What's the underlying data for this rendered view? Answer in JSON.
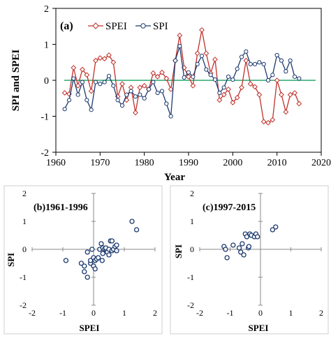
{
  "colors": {
    "spei": "#c0302b",
    "spi": "#1c3a6e",
    "zero_line": "#2aa86f",
    "scatter": "#1c3a6e"
  },
  "chart_data": [
    {
      "id": "a",
      "type": "line",
      "panel_label": "(a)",
      "xlabel": "Year",
      "ylabel": "SPI and SPEI",
      "xlim": [
        1960,
        2020
      ],
      "ylim": [
        -2,
        2
      ],
      "xticks": [
        1960,
        1970,
        1980,
        1990,
        2000,
        2010,
        2020
      ],
      "yticks": [
        -2,
        -1,
        0,
        1,
        2
      ],
      "x": [
        1962,
        1963,
        1964,
        1965,
        1966,
        1967,
        1968,
        1969,
        1970,
        1971,
        1972,
        1973,
        1974,
        1975,
        1976,
        1977,
        1978,
        1979,
        1980,
        1981,
        1982,
        1983,
        1984,
        1985,
        1986,
        1987,
        1988,
        1989,
        1990,
        1991,
        1992,
        1993,
        1994,
        1995,
        1996,
        1997,
        1998,
        1999,
        2000,
        2001,
        2002,
        2003,
        2004,
        2005,
        2006,
        2007,
        2008,
        2009,
        2010,
        2011,
        2012,
        2013,
        2014,
        2015
      ],
      "series": [
        {
          "name": "SPEI",
          "marker": "diamond",
          "values": [
            -0.35,
            -0.38,
            0.35,
            -0.15,
            0.3,
            0.15,
            -0.3,
            0.55,
            0.62,
            0.6,
            0.7,
            0.5,
            -0.45,
            -0.1,
            -0.55,
            -0.2,
            -0.9,
            -0.2,
            -0.15,
            -0.25,
            0.2,
            0.1,
            0.22,
            0.05,
            -0.25,
            0.55,
            1.25,
            0.35,
            0.1,
            -0.15,
            0.75,
            1.4,
            0.75,
            0.2,
            0.58,
            -0.55,
            -0.4,
            -0.25,
            -0.62,
            -0.48,
            -0.2,
            0.55,
            -0.1,
            -0.18,
            -0.4,
            -1.15,
            -1.18,
            -1.1,
            0.0,
            -0.4,
            -0.88,
            -0.4,
            -0.35,
            -0.65
          ]
        },
        {
          "name": "SPI",
          "marker": "circle",
          "values": [
            -0.8,
            -0.55,
            0.05,
            -0.4,
            -0.05,
            -0.55,
            -0.82,
            -0.05,
            -0.1,
            -0.05,
            0.12,
            -0.15,
            -0.55,
            -0.7,
            -0.4,
            -0.3,
            -0.45,
            -0.4,
            -0.5,
            -0.25,
            -0.05,
            -0.35,
            -0.3,
            -0.65,
            -1.0,
            0.55,
            0.95,
            0.08,
            0.22,
            0.1,
            0.45,
            0.68,
            0.3,
            0.15,
            0.02,
            -0.35,
            -0.2,
            0.1,
            0.02,
            0.32,
            0.65,
            0.8,
            0.45,
            0.45,
            0.5,
            0.45,
            0.0,
            0.15,
            0.7,
            0.55,
            0.25,
            0.55,
            0.1,
            0.05
          ]
        }
      ]
    },
    {
      "id": "b",
      "type": "scatter",
      "panel_label": "(b)1961-1996",
      "xlabel": "SPEI",
      "ylabel": "SPI",
      "xlim": [
        -2,
        2
      ],
      "ylim": [
        -2,
        2
      ],
      "xticks": [
        -2,
        -1,
        0,
        1,
        2
      ],
      "yticks": [
        -2,
        -1,
        0,
        1,
        2
      ],
      "points": [
        [
          -0.9,
          -0.4
        ],
        [
          -0.4,
          -0.5
        ],
        [
          -0.3,
          -0.6
        ],
        [
          -0.3,
          -0.8
        ],
        [
          -0.2,
          -1.0
        ],
        [
          -0.2,
          -0.1
        ],
        [
          -0.1,
          -0.5
        ],
        [
          -0.1,
          -0.4
        ],
        [
          -0.05,
          0.0
        ],
        [
          0.0,
          -0.3
        ],
        [
          0.0,
          -0.6
        ],
        [
          0.05,
          -0.7
        ],
        [
          0.05,
          -0.4
        ],
        [
          0.1,
          -0.35
        ],
        [
          0.15,
          -0.3
        ],
        [
          0.2,
          0.0
        ],
        [
          0.25,
          0.2
        ],
        [
          0.3,
          0.05
        ],
        [
          0.3,
          -0.15
        ],
        [
          0.35,
          0.0
        ],
        [
          0.4,
          0.0
        ],
        [
          0.4,
          0.05
        ],
        [
          0.45,
          -0.1
        ],
        [
          0.5,
          0.0
        ],
        [
          0.5,
          -0.2
        ],
        [
          0.55,
          0.3
        ],
        [
          0.6,
          0.3
        ],
        [
          0.6,
          -0.05
        ],
        [
          0.65,
          0.0
        ],
        [
          0.7,
          0.1
        ],
        [
          0.75,
          0.15
        ],
        [
          0.75,
          -0.05
        ],
        [
          1.25,
          1.0
        ],
        [
          1.4,
          0.7
        ],
        [
          0.28,
          -0.4
        ]
      ]
    },
    {
      "id": "c",
      "type": "scatter",
      "panel_label": "(c)1997-2015",
      "xlabel": "SPEI",
      "ylabel": "SPI",
      "xlim": [
        -2,
        2
      ],
      "ylim": [
        -2,
        2
      ],
      "xticks": [
        -2,
        -1,
        0,
        1,
        2
      ],
      "yticks": [
        -2,
        -1,
        0,
        1,
        2
      ],
      "points": [
        [
          -1.2,
          0.1
        ],
        [
          -1.15,
          0.0
        ],
        [
          -1.1,
          -0.3
        ],
        [
          -0.9,
          0.15
        ],
        [
          -0.7,
          0.05
        ],
        [
          -0.65,
          -0.1
        ],
        [
          -0.6,
          0.2
        ],
        [
          -0.55,
          -0.2
        ],
        [
          -0.5,
          0.55
        ],
        [
          -0.45,
          0.45
        ],
        [
          -0.4,
          0.05
        ],
        [
          -0.38,
          0.1
        ],
        [
          -0.35,
          0.55
        ],
        [
          -0.3,
          0.5
        ],
        [
          -0.2,
          0.45
        ],
        [
          -0.15,
          0.55
        ],
        [
          -0.1,
          0.45
        ],
        [
          0.4,
          0.7
        ],
        [
          0.5,
          0.8
        ]
      ]
    }
  ]
}
